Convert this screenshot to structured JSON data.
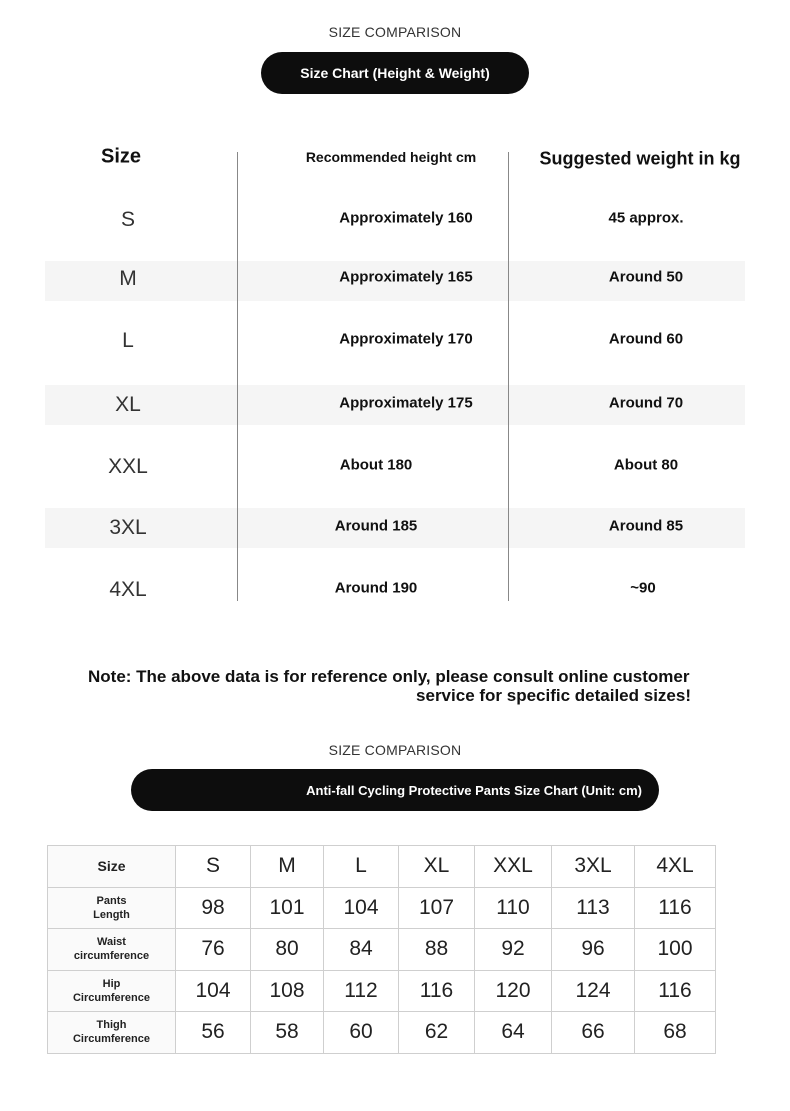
{
  "section1": {
    "caption": "SIZE COMPARISON",
    "title": "Size Chart (Height & Weight)",
    "headers": {
      "size": "Size",
      "height": "Recommended height cm",
      "weight": "Suggested weight in kg"
    },
    "rows": [
      {
        "size": "S",
        "height": "Approximately 160",
        "weight": "45 approx."
      },
      {
        "size": "M",
        "height": "Approximately 165",
        "weight": "Around 50"
      },
      {
        "size": "L",
        "height": "Approximately 170",
        "weight": "Around 60"
      },
      {
        "size": "XL",
        "height": "Approximately 175",
        "weight": "Around 70"
      },
      {
        "size": "XXL",
        "height": "About 180",
        "weight": "About 80"
      },
      {
        "size": "3XL",
        "height": "Around 185",
        "weight": "Around 85"
      },
      {
        "size": "4XL",
        "height": "Around 190",
        "weight": "~90"
      }
    ],
    "note_line1": "Note: The above data is for reference only, please consult online customer",
    "note_line2": "service for specific detailed sizes!"
  },
  "section2": {
    "caption": "SIZE COMPARISON",
    "title": "Anti-fall Cycling Protective Pants Size Chart (Unit: cm)",
    "size_label": "Size",
    "sizes": [
      "S",
      "M",
      "L",
      "XL",
      "XXL",
      "3XL",
      "4XL"
    ],
    "rows": [
      {
        "label1": "Pants",
        "label2": "Length",
        "values": [
          "98",
          "101",
          "104",
          "107",
          "110",
          "113",
          "116"
        ]
      },
      {
        "label1": "Waist",
        "label2": "circumference",
        "values": [
          "76",
          "80",
          "84",
          "88",
          "92",
          "96",
          "100"
        ]
      },
      {
        "label1": "Hip",
        "label2": "Circumference",
        "values": [
          "104",
          "108",
          "112",
          "116",
          "120",
          "124",
          "116"
        ]
      },
      {
        "label1": "Thigh",
        "label2": "Circumference",
        "values": [
          "56",
          "58",
          "60",
          "62",
          "64",
          "66",
          "68"
        ]
      }
    ]
  }
}
